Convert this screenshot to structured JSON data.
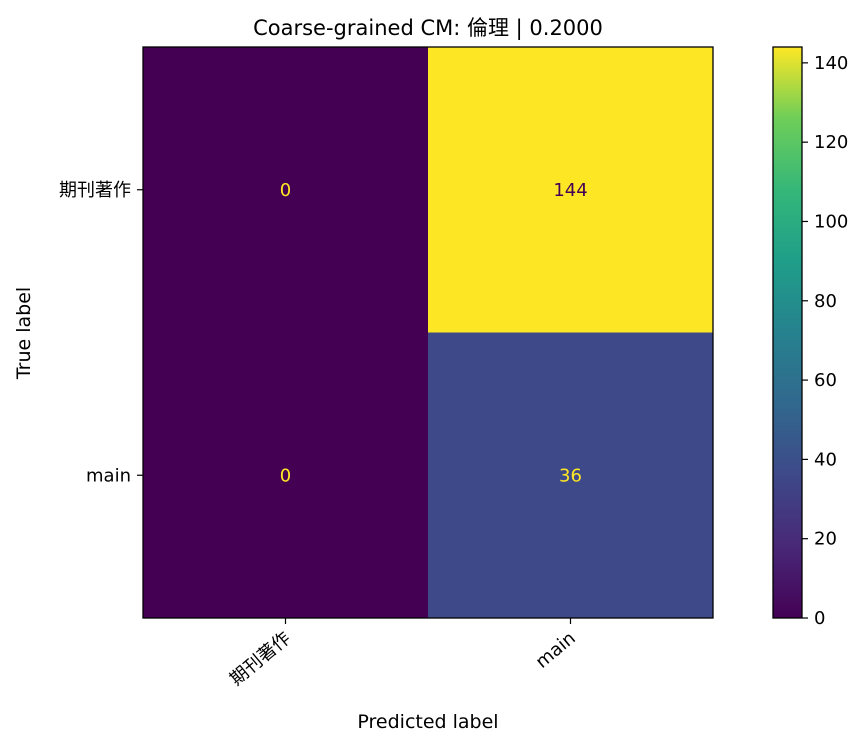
{
  "chart_data": {
    "type": "heatmap",
    "title": "Coarse-grained CM: 倫理 | 0.2000",
    "xlabel": "Predicted label",
    "ylabel": "True label",
    "x_categories": [
      "期刊著作",
      "main"
    ],
    "y_categories": [
      "期刊著作",
      "main"
    ],
    "matrix": [
      [
        0,
        144
      ],
      [
        0,
        36
      ]
    ],
    "colorbar": {
      "min": 0,
      "max": 144,
      "ticks": [
        0,
        20,
        40,
        60,
        80,
        100,
        120,
        140
      ],
      "colormap": "viridis"
    }
  },
  "colors": {
    "viridis_low": "#440154",
    "viridis_high": "#fde725",
    "text_on_dark": "#fde725",
    "text_on_light": "#440154"
  }
}
